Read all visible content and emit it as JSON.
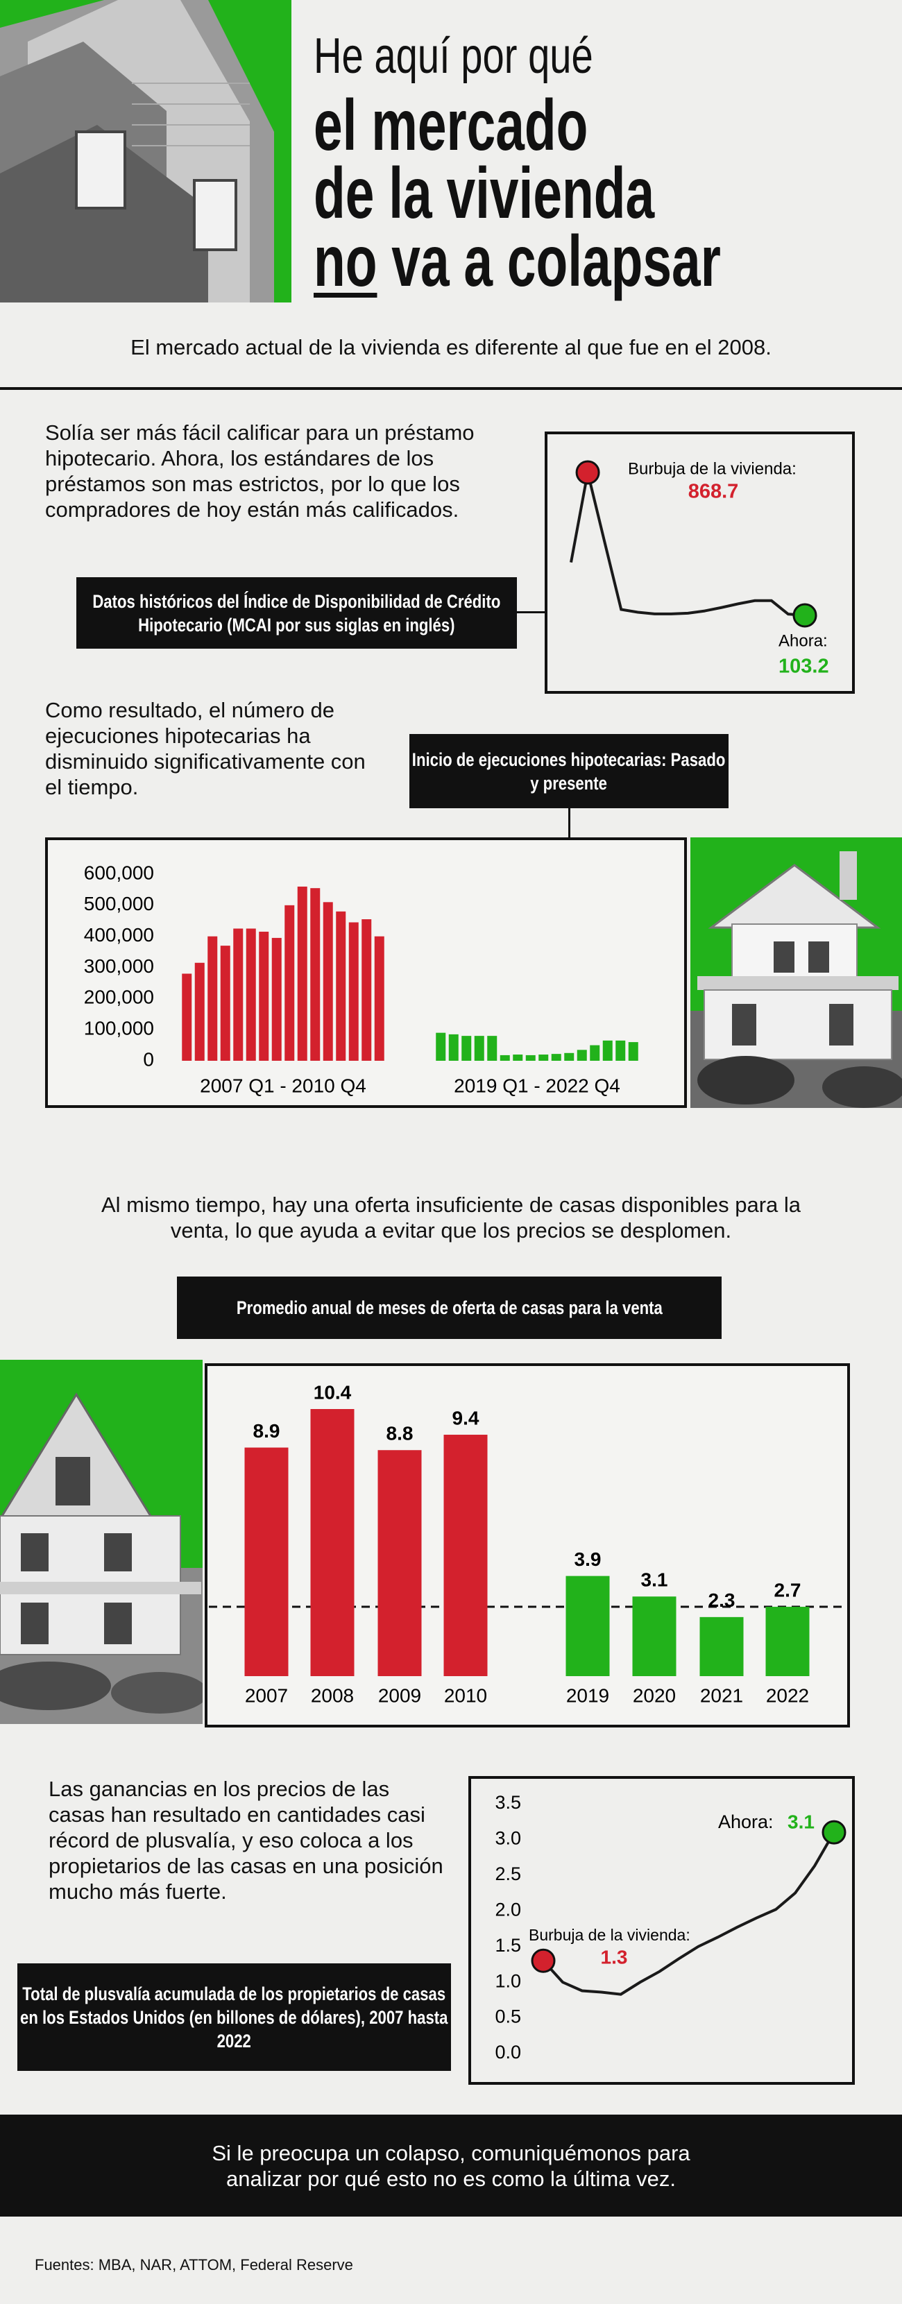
{
  "header": {
    "line1": "He aquí por qué",
    "line2": "el mercado",
    "line3": "de la vivienda",
    "line4_underlined": "no",
    "line4_rest": "va a colapsar"
  },
  "intro": "El mercado actual de la vivienda es diferente al que fue en el 2008.",
  "sections": [
    {
      "text": "Solía ser más fácil calificar para un préstamo hipotecario. Ahora, los estándares de los préstamos son mas estrictos, por lo que los compradores de hoy están más calificados.",
      "label": "Datos históricos del Índice de Disponibilidad de Crédito Hipotecario (MCAI por sus siglas en inglés)"
    },
    {
      "text": "Como resultado, el número de ejecuciones hipotecarias ha disminuido significativamente con el tiempo."
    },
    {
      "text": "Al mismo tiempo, hay una oferta insuficiente de casas disponibles para la venta, lo que ayuda a evitar que los precios se desplomen."
    },
    {
      "text": "Las ganancias en los precios de las casas han resultado en cantidades casi récord de plusvalía, y eso coloca a los propietarios de las casas en una posición mucho más fuerte.",
      "label": "Total de plusvalía acumulada de los propietarios de casas en los Estados Unidos (en billones de dólares), 2007 hasta 2022"
    }
  ],
  "cta": "Si le preocupa un colapso, comuniquémonos para analizar por qué esto no es como la última vez.",
  "sources": "Fuentes: MBA, NAR, ATTOM, Federal Reserve",
  "chart_data": [
    {
      "type": "line",
      "color": "#1a1a1a",
      "values": [
        387,
        868.7,
        500,
        135,
        120,
        111,
        111,
        115,
        127,
        145,
        165,
        182,
        182,
        110,
        103.2
      ],
      "peak_label": "Burbuja de la vivienda:",
      "peak_color": "#d3212d",
      "end_label": "Ahora:",
      "end_color": "#22b21b"
    },
    {
      "type": "bar",
      "title": "Inicio de ejecuciones hipotecarias: Pasado y presente",
      "ylim": [
        0,
        600000
      ],
      "yticks": [
        0,
        {
          "value": 100000,
          "label": "100,000"
        },
        {
          "value": 200000,
          "label": "200,000"
        },
        {
          "value": 300000,
          "label": "300,000"
        },
        {
          "value": 400000,
          "label": "400,000"
        },
        {
          "value": 500000,
          "label": "500,000"
        },
        {
          "value": 600000,
          "label": "600,000"
        }
      ],
      "groups": [
        {
          "label": "2007 Q1 - 2010 Q4",
          "color": "#d3212d",
          "values": [
            280000,
            315000,
            400000,
            370000,
            425000,
            425000,
            415000,
            395000,
            500000,
            560000,
            555000,
            510000,
            480000,
            445000,
            455000,
            400000
          ]
        },
        {
          "label": "2019 Q1 - 2022 Q4",
          "color": "#22b21b",
          "values": [
            90000,
            85000,
            80000,
            80000,
            80000,
            18000,
            20000,
            18000,
            20000,
            22000,
            25000,
            35000,
            50000,
            65000,
            65000,
            60000
          ]
        }
      ]
    },
    {
      "type": "bar",
      "title": "Promedio anual de meses de oferta de casas para la venta",
      "categories": [
        "2007",
        "2008",
        "2009",
        "2010",
        "2019",
        "2020",
        "2021",
        "2022"
      ],
      "values": [
        8.9,
        10.4,
        8.8,
        9.4,
        3.9,
        3.1,
        2.3,
        2.7
      ],
      "colors": [
        "#d3212d",
        "#d3212d",
        "#d3212d",
        "#d3212d",
        "#22b21b",
        "#22b21b",
        "#22b21b",
        "#22b21b"
      ]
    },
    {
      "type": "line",
      "color": "#1a1a1a",
      "ylim": [
        0,
        3.5
      ],
      "yticks": [
        {
          "value": 0,
          "label": "0.0"
        },
        0.5,
        {
          "value": 1,
          "label": "1.0"
        },
        1.5,
        {
          "value": 2,
          "label": "2.0"
        },
        2.5,
        {
          "value": 3,
          "label": "3.0"
        },
        3.5
      ],
      "values": [
        1.3,
        1.0,
        0.88,
        0.86,
        0.83,
        1.0,
        1.15,
        1.33,
        1.5,
        1.63,
        1.77,
        1.9,
        2.02,
        2.25,
        2.63,
        3.1
      ],
      "start_label": "Burbuja de la vivienda:",
      "start_color": "#d3212d",
      "end_label": "Ahora:",
      "end_color": "#22b21b"
    }
  ]
}
